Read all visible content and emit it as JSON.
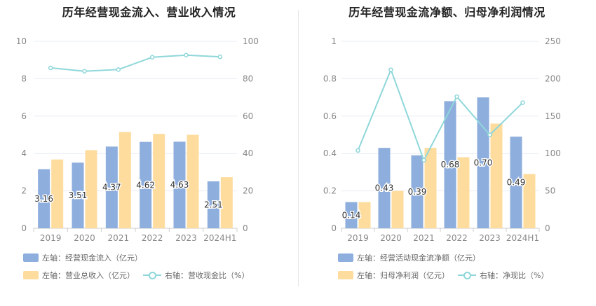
{
  "colors": {
    "bar_primary": "#8eaedd",
    "bar_secondary": "#fddc9e",
    "line": "#8fd7da",
    "grid": "#e8ecf5",
    "axis_text": "#888888",
    "label": "#333333"
  },
  "chart_data": [
    {
      "type": "bar+line",
      "title": "历年经营现金流入、营业收入情况",
      "categories": [
        "2019",
        "2020",
        "2021",
        "2022",
        "2023",
        "2024H1"
      ],
      "series": [
        {
          "name": "左轴：经营现金流入（亿元）",
          "axis": "left",
          "kind": "bar",
          "values": [
            3.16,
            3.51,
            4.37,
            4.62,
            4.63,
            2.51
          ],
          "labels": [
            "3.16",
            "3.51",
            "4.37",
            "4.62",
            "4.63",
            "2.51"
          ]
        },
        {
          "name": "左轴：营业总收入（亿元）",
          "axis": "left",
          "kind": "bar",
          "values": [
            3.68,
            4.18,
            5.15,
            5.05,
            5.0,
            2.73
          ]
        },
        {
          "name": "右轴：营收现金比（%）",
          "axis": "right",
          "kind": "line",
          "values": [
            85.8,
            84.0,
            84.9,
            91.5,
            92.6,
            91.7
          ]
        }
      ],
      "left_axis": {
        "min": 0,
        "max": 10,
        "ticks": [
          "0",
          "2",
          "4",
          "6",
          "8",
          "10"
        ]
      },
      "right_axis": {
        "min": 0,
        "max": 100,
        "ticks": [
          "0",
          "20",
          "40",
          "60",
          "80",
          "100"
        ]
      },
      "legend": [
        {
          "label": "左轴：经营现金流入（亿元）"
        },
        {
          "label": "左轴：营业总收入（亿元）"
        },
        {
          "label": "右轴：营收现金比（%）"
        }
      ]
    },
    {
      "type": "bar+line",
      "title": "历年经营现金流净额、归母净利润情况",
      "categories": [
        "2019",
        "2020",
        "2021",
        "2022",
        "2023",
        "2024H1"
      ],
      "series": [
        {
          "name": "左轴：经营活动现金流净额（亿元）",
          "axis": "left",
          "kind": "bar",
          "values": [
            0.14,
            0.43,
            0.39,
            0.68,
            0.7,
            0.49
          ],
          "labels": [
            "0.14",
            "0.43",
            "0.39",
            "0.68",
            "0.70",
            "0.49"
          ]
        },
        {
          "name": "左轴：归母净利润（亿元）",
          "axis": "left",
          "kind": "bar",
          "values": [
            0.14,
            0.2,
            0.43,
            0.38,
            0.56,
            0.29
          ]
        },
        {
          "name": "右轴：净现比（%）",
          "axis": "right",
          "kind": "line",
          "values": [
            104,
            212,
            91,
            176,
            125,
            168
          ]
        }
      ],
      "left_axis": {
        "min": 0,
        "max": 1,
        "ticks": [
          "0",
          "0.2",
          "0.4",
          "0.6",
          "0.8",
          "1"
        ]
      },
      "right_axis": {
        "min": 0,
        "max": 250,
        "ticks": [
          "0",
          "50",
          "100",
          "150",
          "200",
          "250"
        ]
      },
      "legend": [
        {
          "label": "左轴：经营活动现金流净额（亿元）"
        },
        {
          "label": "左轴：归母净利润（亿元）"
        },
        {
          "label": "右轴：净现比（%）"
        }
      ]
    }
  ]
}
